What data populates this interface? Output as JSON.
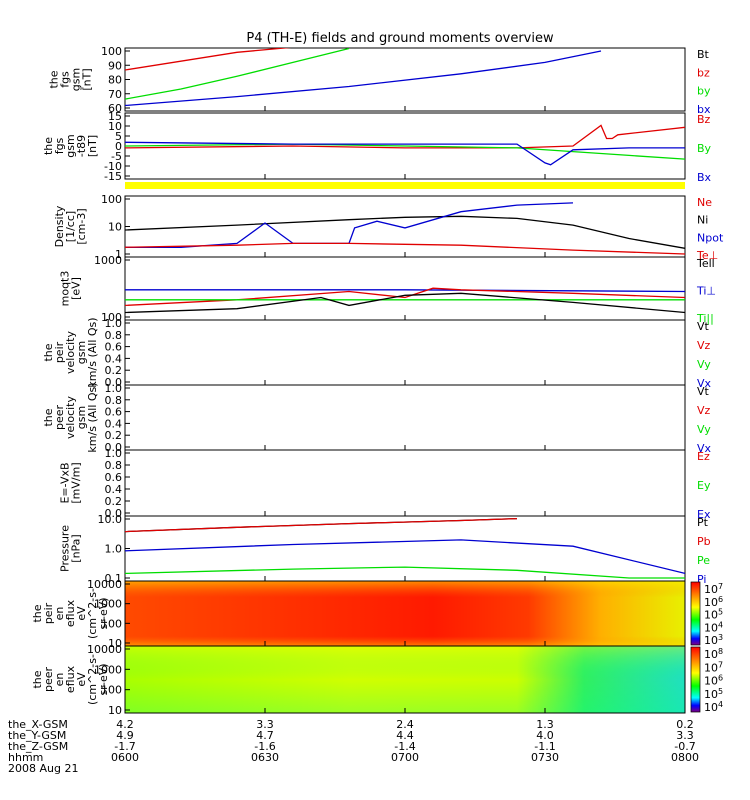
{
  "title": "P4 (TH-E) fields and ground moments overview",
  "date_label": "2008 Aug 21",
  "colors": {
    "black": "#000000",
    "red": "#e00000",
    "green": "#00dd00",
    "blue": "#0000d0",
    "yellow": "#ffff00"
  },
  "time_axis": {
    "row_labels": [
      "the_X-GSM",
      "the_Y-GSM",
      "the_Z-GSM",
      "hhmm"
    ],
    "ticks": [
      {
        "time": "0600",
        "x_gsm": "4.2",
        "y_gsm": "4.9",
        "z_gsm": "-1.7"
      },
      {
        "time": "0630",
        "x_gsm": "3.3",
        "y_gsm": "4.7",
        "z_gsm": "-1.6"
      },
      {
        "time": "0700",
        "x_gsm": "2.4",
        "y_gsm": "4.4",
        "z_gsm": "-1.4"
      },
      {
        "time": "0730",
        "x_gsm": "1.3",
        "y_gsm": "4.0",
        "z_gsm": "-1.1"
      },
      {
        "time": "0800",
        "x_gsm": "0.2",
        "y_gsm": "3.3",
        "z_gsm": "-0.7"
      }
    ]
  },
  "chart_data": [
    {
      "type": "line",
      "ylabel": [
        "the",
        "fgs",
        "gsm",
        "[nT]"
      ],
      "y_ticks": [
        "100",
        "90",
        "80",
        "70",
        "60"
      ],
      "ylim": [
        55,
        100
      ],
      "legend": [
        "Bt",
        "bz",
        "by",
        "bx"
      ],
      "series": [
        {
          "name": "bz",
          "color": "red",
          "x": [
            0,
            0.2,
            0.3
          ],
          "y": [
            85,
            99,
            103
          ]
        },
        {
          "name": "by",
          "color": "green",
          "x": [
            0,
            0.1,
            0.2,
            0.3,
            0.4
          ],
          "y": [
            62,
            70,
            80,
            91,
            102
          ]
        },
        {
          "name": "bx",
          "color": "blue",
          "x": [
            0,
            0.2,
            0.4,
            0.6,
            0.75,
            0.85
          ],
          "y": [
            57,
            64,
            72,
            82,
            91,
            100
          ]
        }
      ]
    },
    {
      "type": "line",
      "ylabel": [
        "the",
        "fgs",
        "gsm",
        "-t89",
        "[nT]"
      ],
      "y_ticks": [
        "15",
        "10",
        "5",
        "0",
        "-5",
        "-10",
        "-15"
      ],
      "ylim": [
        -17,
        15
      ],
      "legend": [
        "Bz",
        "By",
        "Bx"
      ],
      "series": [
        {
          "name": "Bz",
          "color": "red",
          "x": [
            0,
            0.3,
            0.5,
            0.7,
            0.8,
            0.85,
            0.86,
            0.87,
            0.88,
            1.0
          ],
          "y": [
            -2,
            -1,
            -2,
            -2,
            -1,
            10,
            3,
            3,
            5,
            9
          ]
        },
        {
          "name": "By",
          "color": "green",
          "x": [
            0,
            0.3,
            0.5,
            0.7,
            0.8,
            0.9,
            1.0
          ],
          "y": [
            -1,
            0,
            -1,
            -2,
            -4,
            -6,
            -8
          ]
        },
        {
          "name": "Bx",
          "color": "blue",
          "x": [
            0,
            0.3,
            0.5,
            0.7,
            0.75,
            0.76,
            0.8,
            0.9,
            1.0
          ],
          "y": [
            1,
            0,
            0,
            0,
            -10,
            -11,
            -3,
            -2,
            -2
          ]
        }
      ]
    },
    {
      "type": "bar",
      "note": "yellow flag strip"
    },
    {
      "type": "line",
      "ylabel": [
        "Density",
        "[1/cc]",
        "[cm-3]"
      ],
      "y_ticks": [
        "100",
        "10",
        "1"
      ],
      "log": true,
      "ylim": [
        1,
        300
      ],
      "legend": [
        "Ne",
        "Ni",
        "Npot",
        "Te⊥"
      ],
      "series": [
        {
          "name": "Ni",
          "color": "black",
          "x": [
            0,
            0.2,
            0.4,
            0.5,
            0.6,
            0.7,
            0.8,
            0.9,
            1.0
          ],
          "y": [
            12,
            20,
            35,
            45,
            50,
            40,
            20,
            5,
            1.8
          ]
        },
        {
          "name": "Npot",
          "color": "blue",
          "x": [
            0,
            0.1,
            0.2,
            0.25,
            0.3,
            0.35,
            0.4,
            0.41,
            0.45,
            0.5,
            0.6,
            0.7,
            0.8
          ],
          "y": [
            2,
            2,
            3,
            25,
            3,
            3,
            3,
            15,
            30,
            15,
            80,
            160,
            200
          ]
        },
        {
          "name": "Ne",
          "color": "red",
          "x": [
            0,
            0.2,
            0.3,
            0.4,
            0.6,
            0.8,
            1.0
          ],
          "y": [
            2,
            2.5,
            3,
            3,
            2.5,
            1.5,
            1
          ]
        }
      ]
    },
    {
      "type": "line",
      "ylabel": [
        "moqt3",
        "[eV]"
      ],
      "y_ticks": [
        "1000",
        "100"
      ],
      "log": true,
      "ylim": [
        100,
        1000
      ],
      "legend": [
        "Tell",
        "Ti⊥",
        "Ti||"
      ],
      "series": [
        {
          "name": "Ti⊥",
          "color": "blue",
          "x": [
            0,
            0.5,
            1.0
          ],
          "y": [
            300,
            300,
            280
          ]
        },
        {
          "name": "Te⊥",
          "color": "red",
          "x": [
            0,
            0.2,
            0.4,
            0.5,
            0.55,
            0.6,
            0.8,
            1.0
          ],
          "y": [
            160,
            200,
            280,
            220,
            320,
            300,
            260,
            220
          ]
        },
        {
          "name": "Ti||",
          "color": "green",
          "x": [
            0,
            0.5,
            1.0
          ],
          "y": [
            200,
            200,
            200
          ]
        },
        {
          "name": "Tell",
          "color": "black",
          "x": [
            0,
            0.2,
            0.35,
            0.4,
            0.5,
            0.6,
            0.8,
            1.0
          ],
          "y": [
            120,
            140,
            220,
            160,
            240,
            260,
            180,
            120
          ]
        }
      ]
    },
    {
      "type": "line",
      "ylabel": [
        "the",
        "peir",
        "velocity",
        "gsm",
        "km/s (All Qs)"
      ],
      "y_ticks": [
        "1.0",
        "0.8",
        "0.6",
        "0.4",
        "0.2",
        "0.0"
      ],
      "ylim": [
        0,
        1
      ],
      "legend": [
        "Vt",
        "Vz",
        "Vy",
        "Vx"
      ],
      "series": []
    },
    {
      "type": "line",
      "ylabel": [
        "the",
        "peer",
        "velocity",
        "gsm",
        "km/s (All Qs)"
      ],
      "y_ticks": [
        "1.0",
        "0.8",
        "0.6",
        "0.4",
        "0.2",
        "0.0"
      ],
      "ylim": [
        0,
        1
      ],
      "legend": [
        "Vt",
        "Vz",
        "Vy",
        "Vx"
      ],
      "series": []
    },
    {
      "type": "line",
      "ylabel": [
        "E=-VxB",
        "[mV/m]"
      ],
      "y_ticks": [
        "1.0",
        "0.8",
        "0.6",
        "0.4",
        "0.2",
        "0.0"
      ],
      "ylim": [
        0,
        1
      ],
      "legend": [
        "Ez",
        "Ey",
        "Ex"
      ],
      "series": []
    },
    {
      "type": "line",
      "ylabel": [
        "Pressure",
        "[nPa]"
      ],
      "y_ticks": [
        "10.0",
        "1.0",
        "0.1"
      ],
      "log": true,
      "ylim": [
        0.03,
        20
      ],
      "legend": [
        "Pt",
        "Pb",
        "Pe",
        "Pi"
      ],
      "series": [
        {
          "name": "Pt",
          "color": "black",
          "x": [
            0,
            0.2,
            0.4,
            0.6,
            0.7
          ],
          "y": [
            5,
            8,
            12,
            17,
            21
          ]
        },
        {
          "name": "Pb",
          "color": "red",
          "x": [
            0,
            0.2,
            0.4,
            0.6,
            0.7
          ],
          "y": [
            5,
            8,
            12,
            17,
            21
          ]
        },
        {
          "name": "Pi",
          "color": "blue",
          "x": [
            0,
            0.3,
            0.6,
            0.8,
            1.0
          ],
          "y": [
            0.6,
            1.2,
            2,
            1,
            0.05
          ]
        },
        {
          "name": "Pe",
          "color": "green",
          "x": [
            0,
            0.3,
            0.5,
            0.7,
            0.9,
            1.0
          ],
          "y": [
            0.05,
            0.08,
            0.1,
            0.07,
            0.03,
            0.03
          ]
        }
      ]
    },
    {
      "type": "heatmap",
      "ylabel": [
        "the",
        "peir",
        "en",
        "eflux",
        "eV",
        "(cm^2-s-",
        "sr-eV)"
      ],
      "y_ticks": [
        "10000",
        "1000",
        "100",
        "10"
      ],
      "colorbar": [
        "10^7",
        "10^6",
        "10^5",
        "10^4",
        "10^3"
      ],
      "description": "red across most of the period, fading to yellow/green after 0730"
    },
    {
      "type": "heatmap",
      "ylabel": [
        "the",
        "peer",
        "en",
        "eflux",
        "eV",
        "(cm^2-s-",
        "sr-eV)"
      ],
      "y_ticks": [
        "10000",
        "1000",
        "100",
        "10"
      ],
      "colorbar": [
        "10^8",
        "10^7",
        "10^6",
        "10^5",
        "10^4"
      ],
      "description": "yellow-green band, with cyan at low energies after 0730"
    }
  ]
}
